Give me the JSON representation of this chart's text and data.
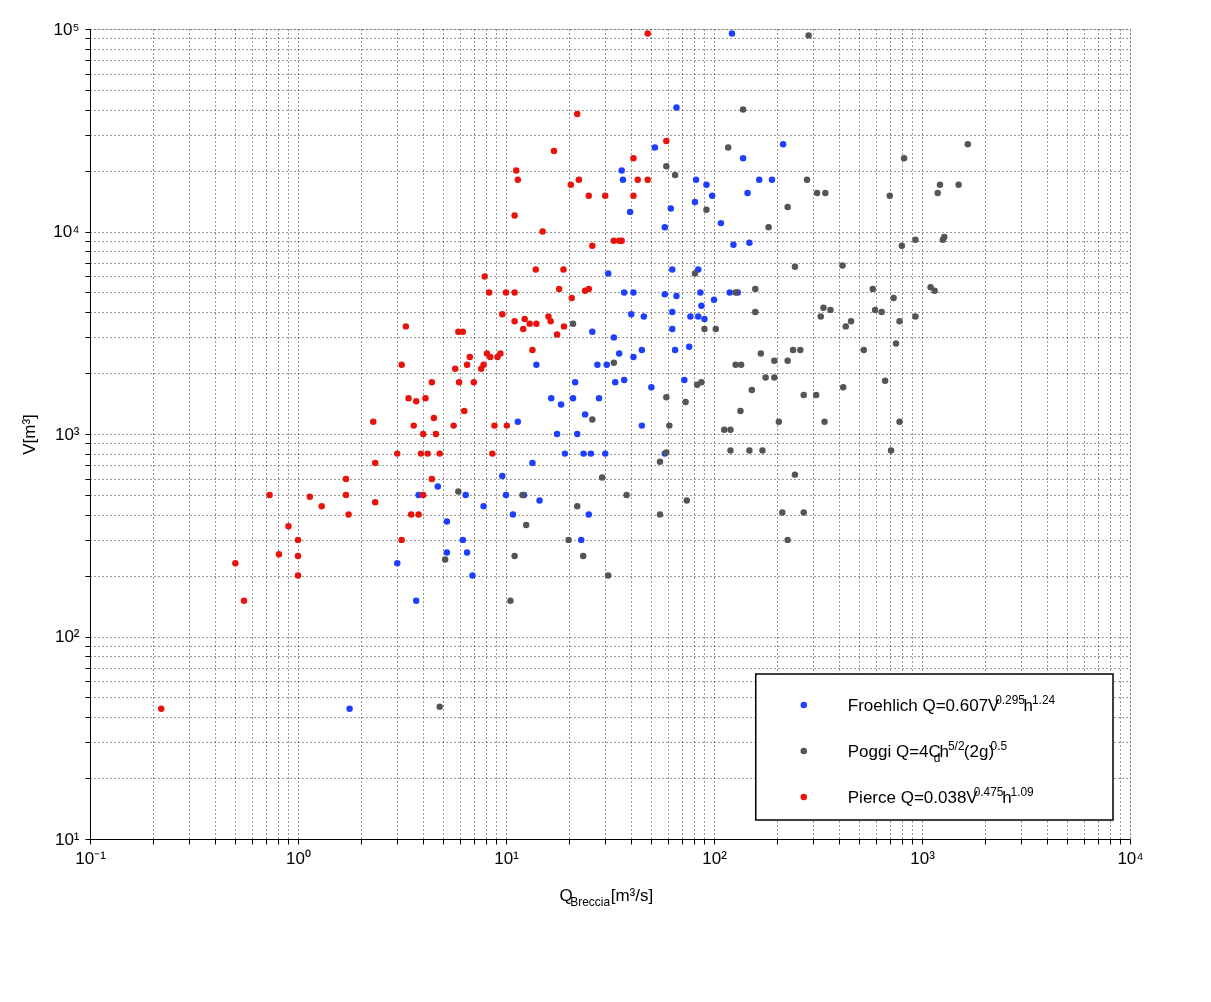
{
  "chart_data": {
    "type": "scatter",
    "xlabel": "Q$_{Breccia}$[m³/s]",
    "ylabel": "V[m³]",
    "log": "xy",
    "xlim": [
      0.1,
      10000
    ],
    "ylim": [
      10,
      100000
    ],
    "xticks": [
      {
        "value": 0.1,
        "label": "10⁻¹"
      },
      {
        "value": 0.2,
        "label": null
      },
      {
        "value": 0.3,
        "label": null
      },
      {
        "value": 0.4,
        "label": null
      },
      {
        "value": 0.5,
        "label": null
      },
      {
        "value": 0.6,
        "label": null
      },
      {
        "value": 0.7,
        "label": null
      },
      {
        "value": 0.8,
        "label": null
      },
      {
        "value": 0.9,
        "label": null
      },
      {
        "value": 1,
        "label": "10⁰"
      },
      {
        "value": 2,
        "label": null
      },
      {
        "value": 3,
        "label": null
      },
      {
        "value": 4,
        "label": null
      },
      {
        "value": 5,
        "label": null
      },
      {
        "value": 6,
        "label": null
      },
      {
        "value": 7,
        "label": null
      },
      {
        "value": 8,
        "label": null
      },
      {
        "value": 9,
        "label": null
      },
      {
        "value": 10,
        "label": "10¹"
      },
      {
        "value": 20,
        "label": null
      },
      {
        "value": 30,
        "label": null
      },
      {
        "value": 40,
        "label": null
      },
      {
        "value": 50,
        "label": null
      },
      {
        "value": 60,
        "label": null
      },
      {
        "value": 70,
        "label": null
      },
      {
        "value": 80,
        "label": null
      },
      {
        "value": 90,
        "label": null
      },
      {
        "value": 100,
        "label": "10²"
      },
      {
        "value": 200,
        "label": null
      },
      {
        "value": 300,
        "label": null
      },
      {
        "value": 400,
        "label": null
      },
      {
        "value": 500,
        "label": null
      },
      {
        "value": 600,
        "label": null
      },
      {
        "value": 700,
        "label": null
      },
      {
        "value": 800,
        "label": null
      },
      {
        "value": 900,
        "label": null
      },
      {
        "value": 1000,
        "label": "10³"
      },
      {
        "value": 2000,
        "label": null
      },
      {
        "value": 3000,
        "label": null
      },
      {
        "value": 4000,
        "label": null
      },
      {
        "value": 5000,
        "label": null
      },
      {
        "value": 6000,
        "label": null
      },
      {
        "value": 7000,
        "label": null
      },
      {
        "value": 8000,
        "label": null
      },
      {
        "value": 9000,
        "label": null
      },
      {
        "value": 10000,
        "label": "10⁴"
      }
    ],
    "yticks": [
      {
        "value": 10,
        "label": "10¹"
      },
      {
        "value": 20,
        "label": null
      },
      {
        "value": 30,
        "label": null
      },
      {
        "value": 40,
        "label": null
      },
      {
        "value": 50,
        "label": null
      },
      {
        "value": 60,
        "label": null
      },
      {
        "value": 70,
        "label": null
      },
      {
        "value": 80,
        "label": null
      },
      {
        "value": 90,
        "label": null
      },
      {
        "value": 100,
        "label": "10²"
      },
      {
        "value": 200,
        "label": null
      },
      {
        "value": 300,
        "label": null
      },
      {
        "value": 400,
        "label": null
      },
      {
        "value": 500,
        "label": null
      },
      {
        "value": 600,
        "label": null
      },
      {
        "value": 700,
        "label": null
      },
      {
        "value": 800,
        "label": null
      },
      {
        "value": 900,
        "label": null
      },
      {
        "value": 1000,
        "label": "10³"
      },
      {
        "value": 2000,
        "label": null
      },
      {
        "value": 3000,
        "label": null
      },
      {
        "value": 4000,
        "label": null
      },
      {
        "value": 5000,
        "label": null
      },
      {
        "value": 6000,
        "label": null
      },
      {
        "value": 7000,
        "label": null
      },
      {
        "value": 8000,
        "label": null
      },
      {
        "value": 9000,
        "label": null
      },
      {
        "value": 10000,
        "label": "10⁴"
      },
      {
        "value": 20000,
        "label": null
      },
      {
        "value": 30000,
        "label": null
      },
      {
        "value": 40000,
        "label": null
      },
      {
        "value": 50000,
        "label": null
      },
      {
        "value": 60000,
        "label": null
      },
      {
        "value": 70000,
        "label": null
      },
      {
        "value": 80000,
        "label": null
      },
      {
        "value": 90000,
        "label": null
      },
      {
        "value": 100000,
        "label": "10⁵"
      }
    ],
    "grid": true,
    "legend": "bottom right",
    "marker": "circle",
    "series": [
      {
        "name": "Froehlich Q=0.607V$^{0.295}$h$^{1.24}$",
        "color": "#1f3fff",
        "x": [
          1.77,
          3.0,
          3.7,
          3.8,
          4.7,
          5.2,
          5.2,
          6.2,
          6.5,
          6.4,
          6.9,
          7.8,
          9.6,
          10.0,
          10.8,
          11.4,
          12.2,
          13.4,
          14,
          14.5,
          16.5,
          17.6,
          18.4,
          19.2,
          21,
          21.5,
          22,
          23,
          23.6,
          24,
          25,
          25.6,
          26,
          27.5,
          28,
          30,
          30.5,
          31,
          33,
          33.5,
          35,
          36,
          36.5,
          37,
          37,
          39.5,
          40,
          41,
          41,
          45,
          45,
          46,
          50,
          52,
          58,
          58,
          58,
          62,
          63,
          63,
          63,
          66,
          65,
          66,
          72,
          76,
          77,
          81,
          82,
          84,
          84,
          86,
          87,
          90,
          100,
          92,
          98,
          108,
          119,
          122,
          124,
          130,
          138,
          148,
          145,
          165,
          190,
          215
        ],
        "values": [
          44,
          230,
          150,
          500,
          550,
          370,
          260,
          300,
          260,
          500,
          200,
          440,
          620,
          500,
          400,
          1150,
          500,
          720,
          2200,
          470,
          1500,
          1000,
          1400,
          800,
          1500,
          1800,
          1000,
          300,
          800,
          1250,
          400,
          800,
          3200,
          2200,
          1500,
          800,
          2200,
          6200,
          3000,
          1800,
          2500,
          20000,
          18000,
          5000,
          1850,
          12500,
          3900,
          2400,
          5000,
          2600,
          1100,
          3800,
          1700,
          26000,
          4900,
          800,
          10500,
          13000,
          6500,
          4000,
          3300,
          41000,
          2600,
          4800,
          1850,
          2700,
          3800,
          14000,
          18000,
          6500,
          3800,
          5000,
          4300,
          3700,
          4600,
          17000,
          15000,
          11000,
          5000,
          95000,
          8600,
          5000,
          23000,
          8800,
          15500,
          18000,
          18000,
          27000
        ]
      },
      {
        "name": "Poggi Q=4C$_{d}$h$^{5/2}$(2g)$^{0.5}$",
        "color": "#555555",
        "x": [
          285,
          138,
          117,
          820,
          1660,
          280,
          1220,
          1500,
          1190,
          313,
          343,
          700,
          226,
          183,
          92,
          800,
          930,
          1280,
          1260,
          245,
          415,
          580,
          730,
          1100,
          1150,
          158,
          127,
          158,
          326,
          336,
          363,
          595,
          640,
          780,
          930,
          430,
          456,
          102,
          168,
          240,
          260,
          525,
          750,
          127,
          135,
          195,
          226,
          177,
          195,
          152,
          270,
          310,
          418,
          665,
          134,
          205,
          340,
          780,
          112,
          120,
          120,
          148,
          171,
          710,
          245,
          213,
          270,
          226,
          59,
          65,
          81,
          21,
          90,
          33,
          83,
          87,
          59,
          73,
          26,
          61,
          55,
          59,
          29,
          12,
          38,
          74,
          22,
          55,
          12.5,
          20,
          11,
          23.5,
          31,
          10.5,
          5.9,
          5.1,
          4.8
        ],
        "values": [
          93000,
          40000,
          26000,
          23000,
          27000,
          18000,
          17000,
          17000,
          15500,
          15500,
          15500,
          15000,
          13200,
          10500,
          12800,
          8500,
          9100,
          9400,
          9100,
          6700,
          6800,
          5200,
          4700,
          5300,
          5100,
          5200,
          5000,
          4000,
          3800,
          4200,
          4100,
          4100,
          4000,
          3600,
          3800,
          3400,
          3600,
          3300,
          2500,
          2600,
          2600,
          2600,
          2800,
          2200,
          2200,
          2300,
          2300,
          1900,
          1900,
          1650,
          1560,
          1560,
          1700,
          1830,
          1300,
          1150,
          1150,
          1150,
          1050,
          1050,
          830,
          830,
          830,
          830,
          630,
          410,
          410,
          300,
          21000,
          19000,
          6200,
          3500,
          3300,
          2250,
          1750,
          1800,
          1520,
          1440,
          1180,
          1100,
          730,
          810,
          610,
          500,
          500,
          470,
          440,
          400,
          355,
          300,
          250,
          250,
          200,
          150,
          520,
          240,
          45
        ]
      },
      {
        "name": "Pierce Q=0.038V$^{0.475}$h$^{1.09}$",
        "color": "#e8140c",
        "x": [
          0.22,
          0.5,
          0.55,
          0.73,
          0.81,
          0.9,
          1.0,
          1.0,
          1.0,
          1.14,
          1.3,
          1.7,
          1.7,
          1.75,
          2.3,
          2.35,
          2.35,
          3.0,
          3.15,
          3.15,
          3.3,
          3.4,
          3.5,
          3.6,
          3.7,
          3.9,
          4.0,
          4.0,
          3.8,
          4.1,
          4.2,
          4.4,
          4.4,
          4.5,
          4.6,
          4.8,
          5.6,
          5.7,
          5.9,
          5.95,
          6.2,
          6.3,
          6.5,
          6.7,
          7.0,
          7.6,
          7.8,
          7.9,
          8.3,
          8.1,
          8.4,
          8.6,
          8.8,
          9.1,
          9.4,
          9.6,
          10.0,
          10.1,
          11,
          11.2,
          11.4,
          11,
          11,
          12.1,
          12.3,
          13,
          13.4,
          13.9,
          14,
          15,
          16,
          17,
          16.4,
          17.6,
          18,
          18.9,
          19,
          20.7,
          20.5,
          22,
          22.4,
          24,
          25,
          25,
          26,
          30,
          33,
          36,
          41,
          43,
          41,
          48,
          48,
          59,
          35
        ],
        "values": [
          44,
          230,
          150,
          500,
          255,
          350,
          300,
          250,
          200,
          490,
          440,
          600,
          500,
          400,
          1150,
          720,
          460,
          800,
          2200,
          300,
          3400,
          1500,
          400,
          1100,
          1450,
          800,
          1000,
          500,
          400,
          1500,
          800,
          1800,
          600,
          1200,
          1000,
          800,
          1100,
          2100,
          3200,
          1800,
          3200,
          1300,
          2200,
          2400,
          1800,
          2100,
          2200,
          6000,
          5000,
          2500,
          2400,
          800,
          1100,
          2400,
          2500,
          3900,
          5000,
          1100,
          12000,
          20000,
          18000,
          5000,
          3600,
          3300,
          3700,
          3500,
          2600,
          6500,
          3500,
          10000,
          3800,
          25000,
          3600,
          3100,
          5200,
          6500,
          3400,
          4700,
          17000,
          38000,
          18000,
          5100,
          5200,
          15000,
          8500,
          15000,
          9000,
          9000,
          15000,
          18000,
          23000,
          18000,
          95000,
          28000,
          9000
        ]
      }
    ]
  }
}
